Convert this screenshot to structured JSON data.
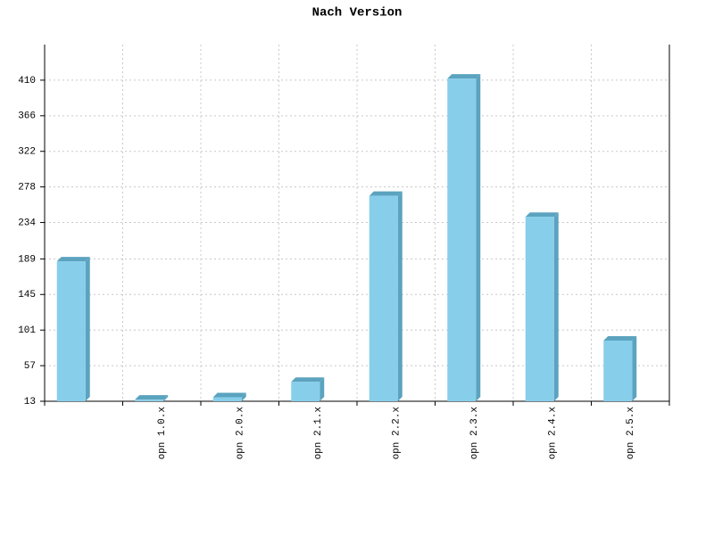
{
  "chart_data": {
    "type": "bar",
    "title": "Nach Version",
    "categories": [
      null,
      "opn 1.0.x",
      "opn 2.0.x",
      "opn 2.1.x",
      "opn 2.2.x",
      "opn 2.3.x",
      "opn 2.4.x",
      "opn 2.5.x"
    ],
    "values": [
      186,
      15,
      18,
      37,
      267,
      412,
      241,
      88
    ],
    "color": "#87ceeb",
    "side_color": "#5ba3bf",
    "ylim": [
      13,
      454
    ],
    "yticks": [
      13,
      57,
      101,
      145,
      189,
      234,
      278,
      322,
      366,
      410
    ],
    "grid": true
  }
}
